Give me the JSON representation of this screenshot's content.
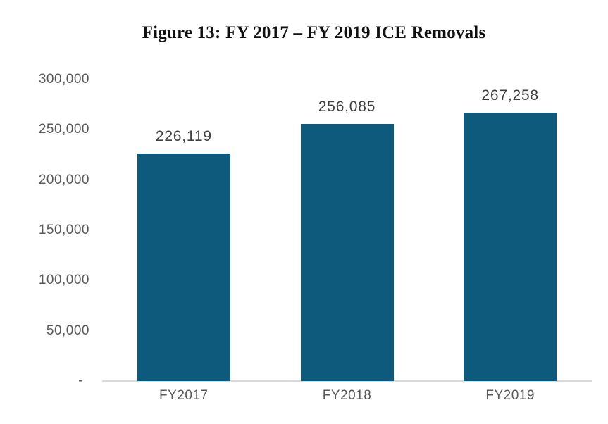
{
  "chart_data": {
    "type": "bar",
    "title": "Figure 13: FY 2017 – FY 2019 ICE Removals",
    "categories": [
      "FY2017",
      "FY2018",
      "FY2019"
    ],
    "values": [
      226119,
      256085,
      267258
    ],
    "value_labels": [
      "226,119",
      "256,085",
      "267,258"
    ],
    "xlabel": "",
    "ylabel": "",
    "ylim": [
      0,
      300000
    ],
    "y_tick_interval": 50000,
    "y_tick_labels": [
      "-",
      "50,000",
      "100,000",
      "150,000",
      "200,000",
      "250,000",
      "300,000"
    ],
    "grid": false,
    "legend": "none",
    "colors": {
      "bar": "#0e5a7d",
      "axis_line": "#d9d9d9",
      "tick_label": "#595959",
      "category_label": "#595959",
      "value_label": "#3f3f3f",
      "title": "#111111",
      "background": "#ffffff"
    }
  }
}
